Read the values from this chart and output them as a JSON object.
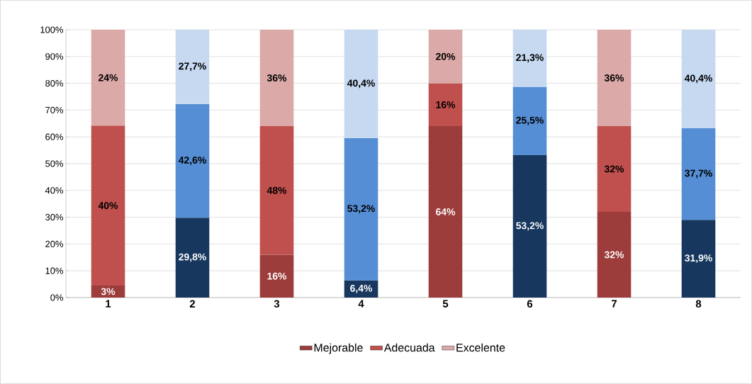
{
  "chart_data": {
    "type": "bar",
    "stacked": true,
    "categories": [
      "1",
      "2",
      "3",
      "4",
      "5",
      "6",
      "7",
      "8"
    ],
    "series": [
      {
        "name": "Mejorable",
        "color": "#9c3d3b",
        "colors": [
          "#9c3d3b",
          "#17375e",
          "#9c3d3b",
          "#17375e",
          "#9c3d3b",
          "#17375e",
          "#9c3d3b",
          "#17375e"
        ],
        "values": [
          4.5,
          29.8,
          16,
          6.4,
          64,
          53.2,
          32,
          29.0
        ]
      },
      {
        "name": "Adecuada",
        "color": "#c0504d",
        "colors": [
          "#c0504d",
          "#558ed5",
          "#c0504d",
          "#558ed5",
          "#c0504d",
          "#558ed5",
          "#c0504d",
          "#558ed5"
        ],
        "values": [
          59.7,
          42.5,
          48,
          53.2,
          16,
          25.5,
          32,
          34.3
        ]
      },
      {
        "name": "Excelente",
        "color": "#dba9a8",
        "colors": [
          "#dba9a8",
          "#c6d9f1",
          "#dba9a8",
          "#c6d9f1",
          "#dba9a8",
          "#c6d9f1",
          "#dba9a8",
          "#c6d9f1"
        ],
        "values": [
          35.8,
          27.7,
          36,
          40.4,
          20,
          21.3,
          36,
          36.7
        ]
      }
    ],
    "annotations": [
      "3%",
      "40%",
      "24%",
      "29,8%",
      "42,6%",
      "27,7%",
      "16%",
      "48%",
      "36%",
      "6,4%",
      "53,2%",
      "40,4%",
      "64%",
      "16%",
      "20%",
      "53,2%",
      "25,5%",
      "21,3%",
      "32%",
      "32%",
      "36%",
      "31,9%",
      "37,7%",
      "40,4%"
    ],
    "ylim": [
      0,
      100
    ],
    "yticks": [
      {
        "value": 0,
        "label": "0%"
      },
      {
        "value": 10,
        "label": "10%"
      },
      {
        "value": 20,
        "label": "20%"
      },
      {
        "value": 30,
        "label": "30%"
      },
      {
        "value": 40,
        "label": "40%"
      },
      {
        "value": 50,
        "label": "50%"
      },
      {
        "value": 60,
        "label": "60%"
      },
      {
        "value": 70,
        "label": "70%"
      },
      {
        "value": 80,
        "label": "80%"
      },
      {
        "value": 90,
        "label": "90%"
      },
      {
        "value": 100,
        "label": "100%"
      }
    ],
    "grid": "y",
    "legend": "bottom"
  }
}
